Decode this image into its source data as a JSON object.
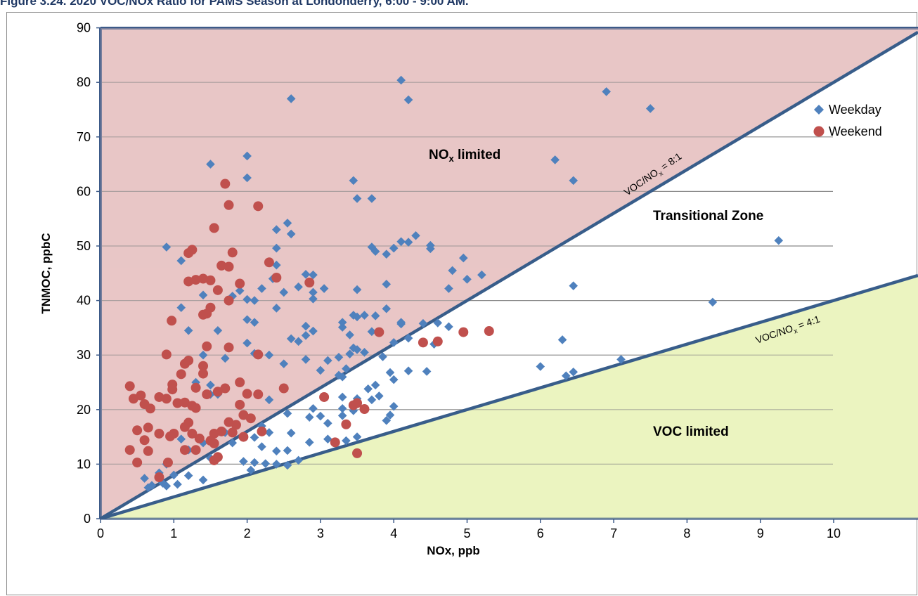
{
  "title": "Figure 3.24. 2020 VOC/NOx Ratio for PAMS Season at Londonderry, 6:00 - 9:00 AM.",
  "chart_data": {
    "type": "scatter",
    "xlabel": "NOx, ppb",
    "ylabel": "TNMOC, ppbC",
    "xlim": [
      0,
      11.5
    ],
    "ylim": [
      0,
      90
    ],
    "x_ticks": [
      0,
      1,
      2,
      3,
      4,
      5,
      6,
      7,
      8,
      9,
      10
    ],
    "y_ticks": [
      0,
      10,
      20,
      30,
      40,
      50,
      60,
      70,
      80,
      90
    ],
    "grid": "horizontal",
    "legend_placement": "right",
    "colors": {
      "weekday": "#4f81bd",
      "weekend": "#c0504d",
      "nox_region": "#e9c6c6",
      "voc_region": "#ebf4c0",
      "ratio_line": "#385d8a"
    },
    "regions": [
      {
        "name": "NOx limited",
        "label_main": "NO",
        "label_sub": "x",
        "label_tail": " limited"
      },
      {
        "name": "Transitional Zone",
        "label_main": "Transitional Zone"
      },
      {
        "name": "VOC limited",
        "label_main": "VOC limited"
      }
    ],
    "ratio_lines": [
      {
        "ratio": 8,
        "label_main": "VOC/NO",
        "label_sub": "x",
        "label_tail": " = 8:1"
      },
      {
        "ratio": 4,
        "label_main": "VOC/NO",
        "label_sub": "x",
        "label_tail": " = 4:1"
      }
    ],
    "series": [
      {
        "name": "Weekday",
        "marker": "diamond",
        "points": [
          [
            4.1,
            80.4
          ],
          [
            6.9,
            78.3
          ],
          [
            2.6,
            77.0
          ],
          [
            4.2,
            76.8
          ],
          [
            7.5,
            75.2
          ],
          [
            2.0,
            66.5
          ],
          [
            1.5,
            65.0
          ],
          [
            6.2,
            65.8
          ],
          [
            2.0,
            62.5
          ],
          [
            3.45,
            62.0
          ],
          [
            6.45,
            62.0
          ],
          [
            3.5,
            58.7
          ],
          [
            3.7,
            58.7
          ],
          [
            2.55,
            54.2
          ],
          [
            2.4,
            53.0
          ],
          [
            2.6,
            52.2
          ],
          [
            4.3,
            51.9
          ],
          [
            9.25,
            51.0
          ],
          [
            4.1,
            50.8
          ],
          [
            4.2,
            50.7
          ],
          [
            4.5,
            50.1
          ],
          [
            4.5,
            49.5
          ],
          [
            0.9,
            49.8
          ],
          [
            2.4,
            49.6
          ],
          [
            3.7,
            49.8
          ],
          [
            3.75,
            49.0
          ],
          [
            4.0,
            49.6
          ],
          [
            3.9,
            48.5
          ],
          [
            1.1,
            47.3
          ],
          [
            2.4,
            46.5
          ],
          [
            2.35,
            44.0
          ],
          [
            2.8,
            44.8
          ],
          [
            2.9,
            44.7
          ],
          [
            4.8,
            45.5
          ],
          [
            4.95,
            47.8
          ],
          [
            5.2,
            44.7
          ],
          [
            5.0,
            43.9
          ],
          [
            6.45,
            42.7
          ],
          [
            2.5,
            41.5
          ],
          [
            1.8,
            40.8
          ],
          [
            2.7,
            42.5
          ],
          [
            2.9,
            41.5
          ],
          [
            3.05,
            42.2
          ],
          [
            3.9,
            43.0
          ],
          [
            1.9,
            41.8
          ],
          [
            2.2,
            42.2
          ],
          [
            4.75,
            42.2
          ],
          [
            2.0,
            40.2
          ],
          [
            2.1,
            40.0
          ],
          [
            2.9,
            40.3
          ],
          [
            1.4,
            41.0
          ],
          [
            2.4,
            38.6
          ],
          [
            3.5,
            42.0
          ],
          [
            1.1,
            38.7
          ],
          [
            8.35,
            39.7
          ],
          [
            4.4,
            35.8
          ],
          [
            4.6,
            35.9
          ],
          [
            4.75,
            35.2
          ],
          [
            4.1,
            35.7
          ],
          [
            3.9,
            38.5
          ],
          [
            4.1,
            36.0
          ],
          [
            3.3,
            35.1
          ],
          [
            3.45,
            37.3
          ],
          [
            3.6,
            37.3
          ],
          [
            2.8,
            35.3
          ],
          [
            2.7,
            32.5
          ],
          [
            3.7,
            34.3
          ],
          [
            3.5,
            37.0
          ],
          [
            3.75,
            37.2
          ],
          [
            3.3,
            36.0
          ],
          [
            3.4,
            33.7
          ],
          [
            4.2,
            33.1
          ],
          [
            2.6,
            33.0
          ],
          [
            2.8,
            33.6
          ],
          [
            4.0,
            32.3
          ],
          [
            4.55,
            32.0
          ],
          [
            2.3,
            30.0
          ],
          [
            3.1,
            29.0
          ],
          [
            3.25,
            29.6
          ],
          [
            3.85,
            29.7
          ],
          [
            3.4,
            30.2
          ],
          [
            3.6,
            30.5
          ],
          [
            3.45,
            31.3
          ],
          [
            2.0,
            32.2
          ],
          [
            2.1,
            30.3
          ],
          [
            1.7,
            29.4
          ],
          [
            2.5,
            28.4
          ],
          [
            2.8,
            29.2
          ],
          [
            3.5,
            31.0
          ],
          [
            3.35,
            27.5
          ],
          [
            4.2,
            27.1
          ],
          [
            4.45,
            27.0
          ],
          [
            3.25,
            26.3
          ],
          [
            3.75,
            24.5
          ],
          [
            3.95,
            26.8
          ],
          [
            3.65,
            23.8
          ],
          [
            3.3,
            22.3
          ],
          [
            3.8,
            22.5
          ],
          [
            4.0,
            20.6
          ],
          [
            3.3,
            20.2
          ],
          [
            3.5,
            22.0
          ],
          [
            3.45,
            19.8
          ],
          [
            3.3,
            18.9
          ],
          [
            3.0,
            18.8
          ],
          [
            3.1,
            17.5
          ],
          [
            2.85,
            18.6
          ],
          [
            2.9,
            20.2
          ],
          [
            2.6,
            15.7
          ],
          [
            2.3,
            15.8
          ],
          [
            2.4,
            12.4
          ],
          [
            2.2,
            13.2
          ],
          [
            2.55,
            12.5
          ],
          [
            2.1,
            10.3
          ],
          [
            2.05,
            8.9
          ],
          [
            2.25,
            10.1
          ],
          [
            2.85,
            14.0
          ],
          [
            3.1,
            14.6
          ],
          [
            3.35,
            14.3
          ],
          [
            3.5,
            15.0
          ],
          [
            2.7,
            10.7
          ],
          [
            2.4,
            10.0
          ],
          [
            2.55,
            9.8
          ],
          [
            1.8,
            13.9
          ],
          [
            2.1,
            14.9
          ],
          [
            1.95,
            10.5
          ],
          [
            1.7,
            15.8
          ],
          [
            1.4,
            13.9
          ],
          [
            1.5,
            11.1
          ],
          [
            1.2,
            12.6
          ],
          [
            1.1,
            14.6
          ],
          [
            0.9,
            10.0
          ],
          [
            1.2,
            7.9
          ],
          [
            1.05,
            6.3
          ],
          [
            0.9,
            6.0
          ],
          [
            0.7,
            6.1
          ],
          [
            0.6,
            7.4
          ],
          [
            0.8,
            8.4
          ],
          [
            1.0,
            8.0
          ],
          [
            0.65,
            5.7
          ],
          [
            0.85,
            6.5
          ],
          [
            1.4,
            7.1
          ],
          [
            6.0,
            27.9
          ],
          [
            6.3,
            32.8
          ],
          [
            6.35,
            26.2
          ],
          [
            6.45,
            26.9
          ],
          [
            7.1,
            29.2
          ],
          [
            1.5,
            22.8
          ],
          [
            1.6,
            22.8
          ],
          [
            1.6,
            34.5
          ],
          [
            1.2,
            34.5
          ],
          [
            1.3,
            25.0
          ],
          [
            1.4,
            30.0
          ],
          [
            2.0,
            36.5
          ],
          [
            2.1,
            36.0
          ],
          [
            3.0,
            27.2
          ],
          [
            2.55,
            19.3
          ],
          [
            2.3,
            21.8
          ],
          [
            2.2,
            17.0
          ],
          [
            3.3,
            26.0
          ],
          [
            1.5,
            24.5
          ],
          [
            2.9,
            34.4
          ],
          [
            4.0,
            25.5
          ],
          [
            3.7,
            21.8
          ],
          [
            3.9,
            18.0
          ],
          [
            3.95,
            19.0
          ]
        ]
      },
      {
        "name": "Weekend",
        "marker": "circle",
        "points": [
          [
            1.7,
            61.4
          ],
          [
            1.75,
            57.5
          ],
          [
            2.15,
            57.3
          ],
          [
            1.55,
            53.3
          ],
          [
            1.8,
            48.8
          ],
          [
            1.2,
            48.7
          ],
          [
            1.25,
            49.3
          ],
          [
            1.65,
            46.4
          ],
          [
            1.75,
            46.2
          ],
          [
            2.3,
            47.0
          ],
          [
            2.4,
            44.2
          ],
          [
            1.2,
            43.5
          ],
          [
            1.3,
            43.8
          ],
          [
            1.4,
            44.0
          ],
          [
            1.5,
            43.7
          ],
          [
            1.9,
            43.1
          ],
          [
            2.85,
            43.3
          ],
          [
            1.6,
            41.9
          ],
          [
            1.75,
            40.0
          ],
          [
            1.5,
            38.7
          ],
          [
            1.45,
            37.6
          ],
          [
            1.4,
            37.4
          ],
          [
            0.97,
            36.3
          ],
          [
            4.4,
            32.3
          ],
          [
            4.6,
            32.5
          ],
          [
            4.95,
            34.2
          ],
          [
            5.3,
            34.4
          ],
          [
            3.8,
            34.2
          ],
          [
            1.45,
            31.6
          ],
          [
            1.75,
            31.4
          ],
          [
            2.15,
            30.1
          ],
          [
            0.9,
            30.1
          ],
          [
            1.15,
            28.4
          ],
          [
            1.4,
            28.0
          ],
          [
            1.2,
            29.0
          ],
          [
            1.1,
            26.5
          ],
          [
            1.4,
            26.6
          ],
          [
            1.9,
            25.0
          ],
          [
            1.3,
            24.0
          ],
          [
            0.98,
            24.6
          ],
          [
            0.98,
            23.7
          ],
          [
            0.4,
            24.3
          ],
          [
            0.45,
            22.0
          ],
          [
            0.55,
            22.6
          ],
          [
            0.6,
            21.0
          ],
          [
            0.68,
            20.2
          ],
          [
            0.8,
            22.3
          ],
          [
            0.9,
            22.0
          ],
          [
            1.05,
            21.2
          ],
          [
            1.15,
            21.3
          ],
          [
            1.25,
            20.7
          ],
          [
            1.3,
            20.3
          ],
          [
            1.7,
            23.9
          ],
          [
            1.6,
            23.3
          ],
          [
            2.0,
            22.9
          ],
          [
            2.15,
            22.8
          ],
          [
            2.5,
            23.9
          ],
          [
            1.45,
            22.8
          ],
          [
            1.9,
            20.9
          ],
          [
            1.95,
            19.0
          ],
          [
            2.05,
            18.4
          ],
          [
            1.85,
            17.2
          ],
          [
            1.75,
            17.7
          ],
          [
            1.8,
            15.8
          ],
          [
            1.95,
            15.0
          ],
          [
            1.65,
            16.0
          ],
          [
            1.55,
            15.6
          ],
          [
            1.5,
            14.3
          ],
          [
            1.55,
            13.8
          ],
          [
            1.6,
            11.3
          ],
          [
            1.55,
            10.7
          ],
          [
            1.35,
            14.7
          ],
          [
            1.25,
            15.6
          ],
          [
            1.2,
            17.6
          ],
          [
            1.15,
            16.8
          ],
          [
            1.0,
            15.6
          ],
          [
            0.95,
            15.1
          ],
          [
            0.8,
            15.6
          ],
          [
            0.5,
            16.2
          ],
          [
            0.65,
            16.7
          ],
          [
            0.6,
            14.4
          ],
          [
            0.5,
            10.3
          ],
          [
            0.65,
            12.4
          ],
          [
            0.4,
            12.6
          ],
          [
            0.8,
            7.6
          ],
          [
            0.92,
            10.3
          ],
          [
            1.15,
            12.6
          ],
          [
            1.3,
            12.6
          ],
          [
            2.2,
            16.0
          ],
          [
            3.05,
            22.3
          ],
          [
            3.5,
            21.2
          ],
          [
            3.45,
            20.8
          ],
          [
            3.6,
            20.1
          ],
          [
            3.35,
            17.3
          ],
          [
            3.2,
            14.0
          ],
          [
            3.5,
            12.0
          ]
        ]
      }
    ]
  }
}
